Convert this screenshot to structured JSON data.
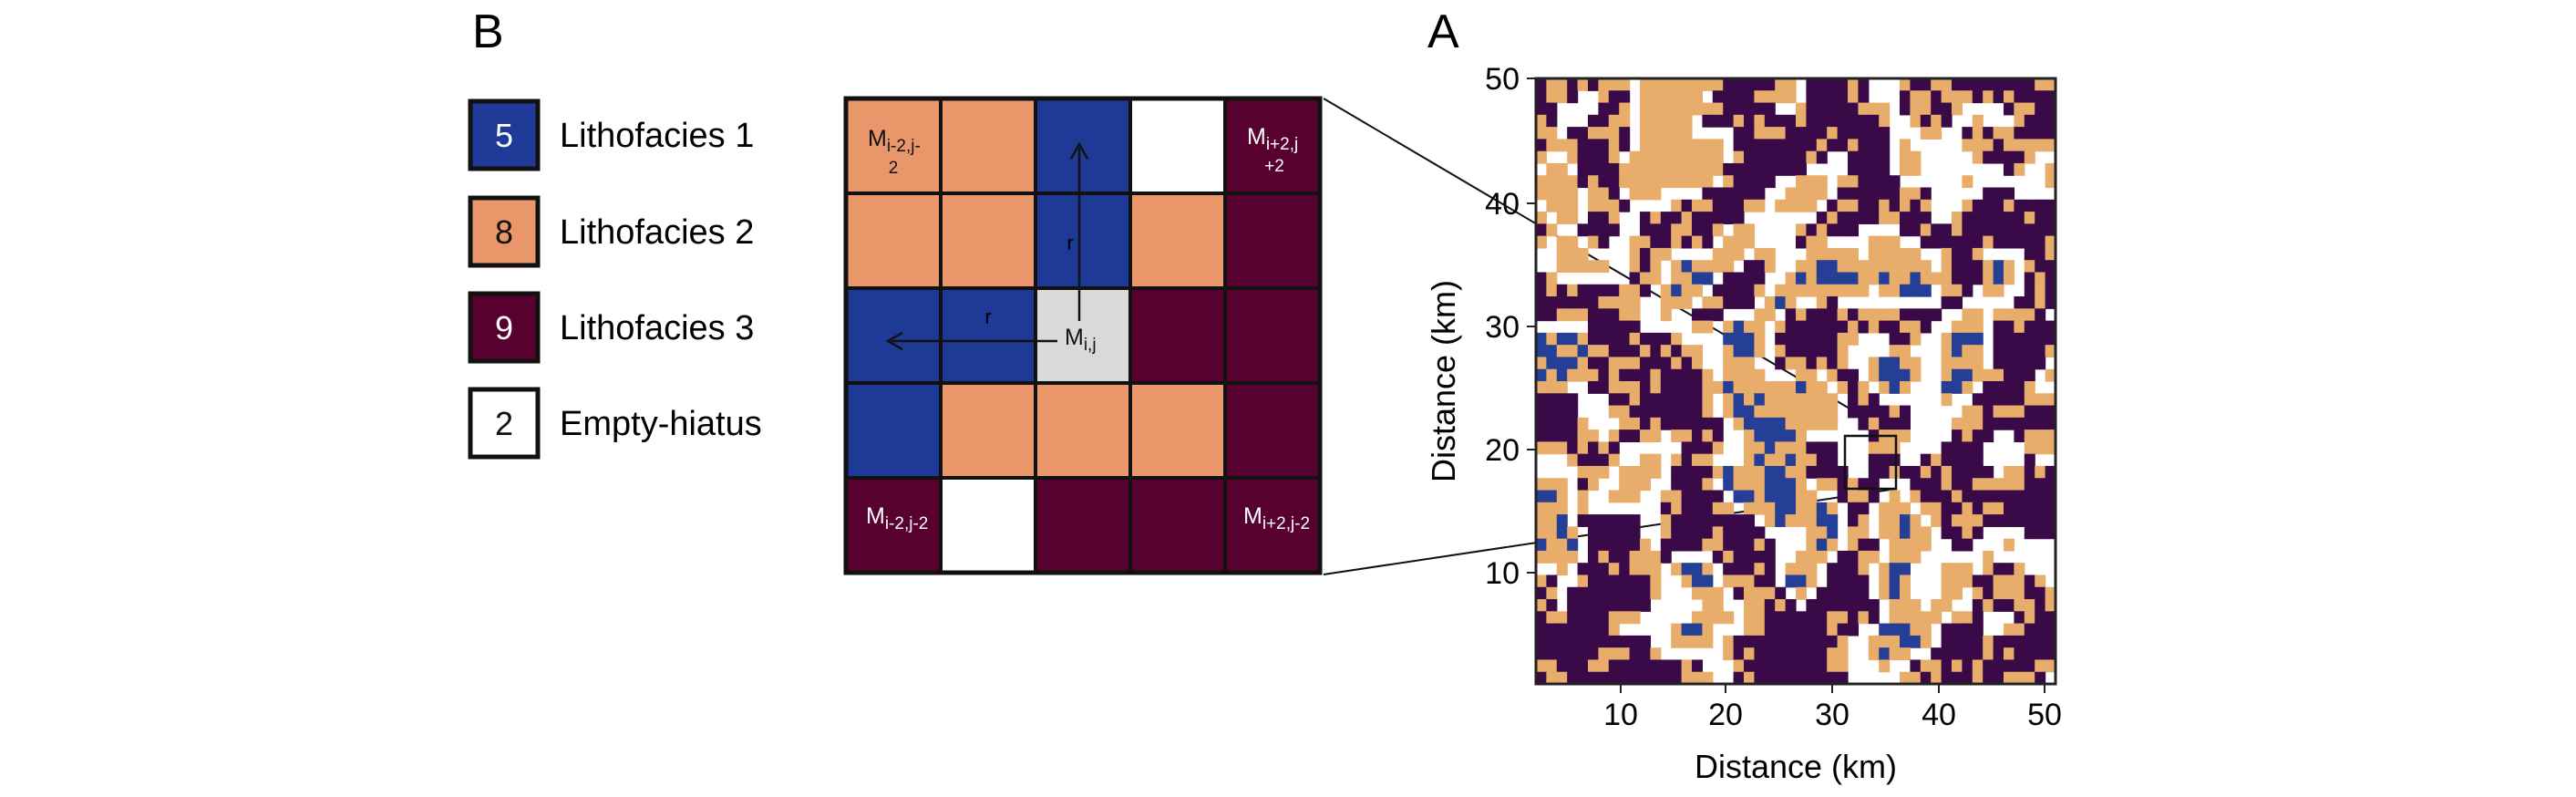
{
  "panel_b": {
    "label": "B",
    "legend": [
      {
        "number": "5",
        "label": "Lithofacies 1",
        "color": "#1f3a96",
        "text_color": "#ffffff"
      },
      {
        "number": "8",
        "label": "Lithofacies 2",
        "color": "#e8966a",
        "text_color": "#111111"
      },
      {
        "number": "9",
        "label": "Lithofacies 3",
        "color": "#58002f",
        "text_color": "#ffffff"
      },
      {
        "number": "2",
        "label": "Empty-hiatus",
        "color": "#ffffff",
        "text_color": "#111111"
      }
    ],
    "grid": {
      "cells": [
        [
          "o",
          "o",
          "b",
          "w",
          "p"
        ],
        [
          "o",
          "o",
          "b",
          "o",
          "p"
        ],
        [
          "b",
          "b",
          "g",
          "p",
          "p"
        ],
        [
          "b",
          "o",
          "o",
          "o",
          "p"
        ],
        [
          "p",
          "w",
          "p",
          "p",
          "p"
        ]
      ],
      "corner_labels": {
        "top_left": {
          "main": "M",
          "sub": "i-2,j-",
          "sub2": "2"
        },
        "top_right": {
          "main": "M",
          "sub": "i+2,j",
          "sub2": "+2"
        },
        "bottom_left": {
          "main": "M",
          "sub": "i-2,j-2"
        },
        "bottom_right": {
          "main": "M",
          "sub": "i+2,j-2"
        },
        "center": {
          "main": "M",
          "sub": "i,j"
        }
      },
      "arrow_label": "r",
      "center_color": "#d9d9d9"
    }
  },
  "panel_a": {
    "label": "A",
    "xlabel": "Distance (km)",
    "ylabel": "Distance (km)",
    "xticks": [
      "10",
      "20",
      "30",
      "40",
      "50"
    ],
    "yticks": [
      "10",
      "20",
      "30",
      "40",
      "50"
    ],
    "colors": {
      "blue": "#263f96",
      "orange": "#e8ad6a",
      "purple": "#3a0a48",
      "white": "#ffffff"
    }
  }
}
